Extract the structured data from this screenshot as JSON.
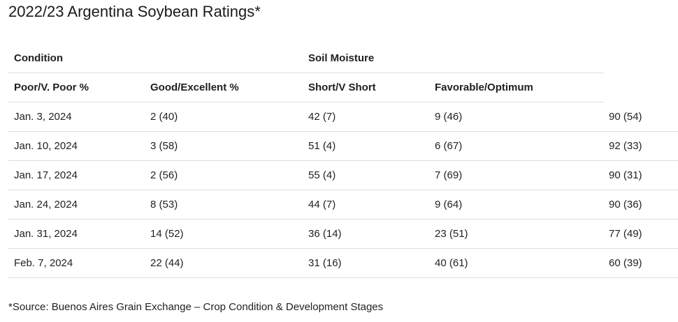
{
  "title": "2022/23 Argentina Soybean Ratings*",
  "table": {
    "group_headers": {
      "condition": "Condition",
      "soil_moisture": "Soil Moisture"
    },
    "column_headers": [
      "Poor/V. Poor %",
      "Good/Excellent %",
      "Short/V Short",
      "Favorable/Optimum"
    ],
    "rows": [
      [
        "Jan. 3, 2024",
        "2 (40)",
        "42 (7)",
        "9 (46)",
        "90 (54)"
      ],
      [
        "Jan. 10, 2024",
        "3 (58)",
        "51 (4)",
        "6 (67)",
        "92 (33)"
      ],
      [
        "Jan. 17, 2024",
        "2 (56)",
        "55 (4)",
        "7 (69)",
        "90 (31)"
      ],
      [
        "Jan. 24, 2024",
        "8 (53)",
        "44 (7)",
        "9 (64)",
        "90 (36)"
      ],
      [
        "Jan. 31, 2024",
        "14 (52)",
        "36 (14)",
        "23 (51)",
        "77 (49)"
      ],
      [
        "Feb. 7, 2024",
        "22 (44)",
        "31 (16)",
        "40 (61)",
        "60 (39)"
      ]
    ]
  },
  "source_note": "*Source: Buenos Aires Grain Exchange – Crop Condition & Development Stages"
}
